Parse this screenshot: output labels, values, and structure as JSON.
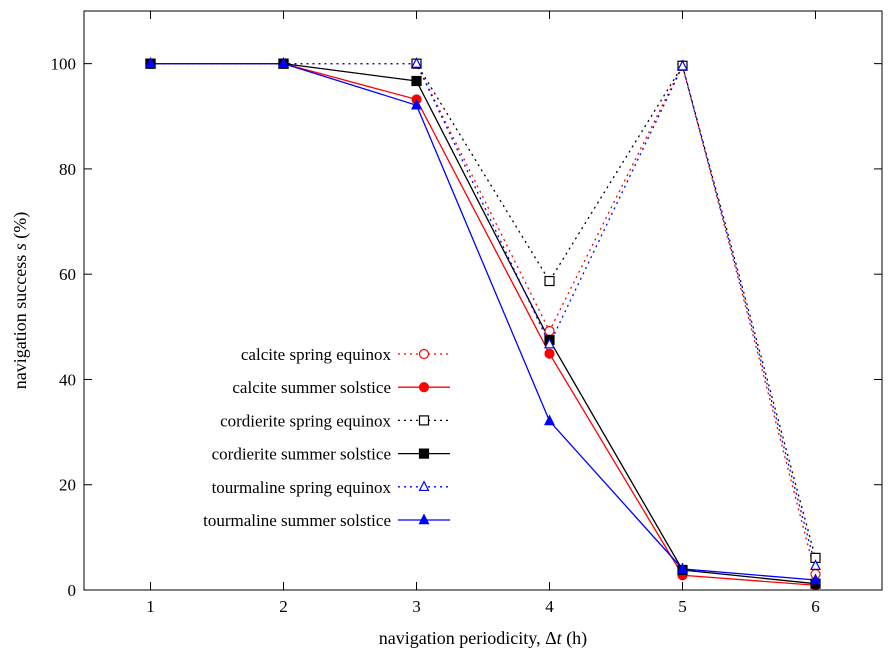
{
  "chart_data": {
    "type": "line",
    "title": "",
    "xlabel_parts": [
      "navigation periodicity, ",
      "Δ",
      "t",
      " (h)"
    ],
    "ylabel_parts": [
      "navigation success ",
      "s",
      " (%)"
    ],
    "x": [
      1,
      2,
      3,
      4,
      5,
      6
    ],
    "xlim": [
      0.5,
      6.5
    ],
    "ylim": [
      0,
      110
    ],
    "xticks": [
      "1",
      "2",
      "3",
      "4",
      "5",
      "6"
    ],
    "yticks": [
      "0",
      "20",
      "40",
      "60",
      "80",
      "100"
    ],
    "grid": false,
    "legend_position": "lower-left",
    "series": [
      {
        "name": "calcite spring equinox",
        "values": [
          100,
          100,
          100,
          49.2,
          99.7,
          3.0
        ],
        "color": "#ff0000",
        "line_style": "dotted",
        "marker": "open-circle"
      },
      {
        "name": "calcite summer solstice",
        "values": [
          100,
          100,
          93.2,
          44.9,
          2.8,
          0.9
        ],
        "color": "#ff0000",
        "line_style": "solid",
        "marker": "filled-circle"
      },
      {
        "name": "cordierite spring equinox",
        "values": [
          100,
          100,
          100,
          58.7,
          99.6,
          6.1
        ],
        "color": "#000000",
        "line_style": "dotted",
        "marker": "open-square"
      },
      {
        "name": "cordierite summer solstice",
        "values": [
          100,
          100,
          96.7,
          47.5,
          3.8,
          1.2
        ],
        "color": "#000000",
        "line_style": "solid",
        "marker": "filled-square"
      },
      {
        "name": "tourmaline spring equinox",
        "values": [
          100,
          100,
          100,
          46.7,
          99.5,
          4.6
        ],
        "color": "#0000ff",
        "line_style": "dotted",
        "marker": "open-triangle"
      },
      {
        "name": "tourmaline summer solstice",
        "values": [
          100,
          100,
          92.1,
          32.1,
          4.0,
          1.9
        ],
        "color": "#0000ff",
        "line_style": "solid",
        "marker": "filled-triangle"
      }
    ]
  }
}
